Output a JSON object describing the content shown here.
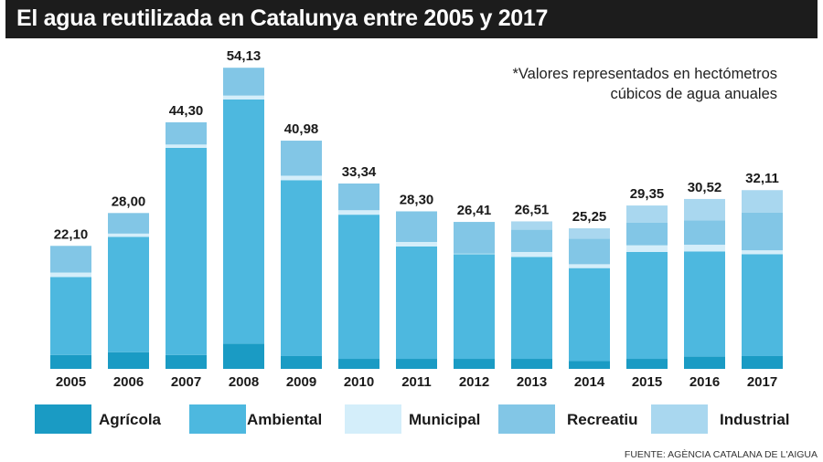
{
  "title": "El agua reutilizada en Catalunya entre 2005 y 2017",
  "note_line1": "*Valores representados en hectómetros",
  "note_line2": "cúbicos de agua anuales",
  "source": "FUENTE: AGÈNCIA CATALANA DE L'AIGUA",
  "chart_data": {
    "type": "bar",
    "stacked": true,
    "categories": [
      "2005",
      "2006",
      "2007",
      "2008",
      "2009",
      "2010",
      "2011",
      "2012",
      "2013",
      "2014",
      "2015",
      "2016",
      "2017"
    ],
    "totals": [
      "22,10",
      "28,00",
      "44,30",
      "54,13",
      "40,98",
      "33,34",
      "28,30",
      "26,41",
      "26,51",
      "25,25",
      "29,35",
      "30,52",
      "32,11"
    ],
    "series": [
      {
        "name": "Agrícola",
        "color": "#1a9bc4",
        "values": [
          2.5,
          3.0,
          2.5,
          4.5,
          2.3,
          1.8,
          1.8,
          1.8,
          1.8,
          1.4,
          1.8,
          2.2,
          2.3
        ]
      },
      {
        "name": "Ambiental",
        "color": "#4db8df",
        "values": [
          14.0,
          20.7,
          37.2,
          43.9,
          31.6,
          25.9,
          20.2,
          18.8,
          18.3,
          16.7,
          19.2,
          18.9,
          18.3
        ]
      },
      {
        "name": "Municipal",
        "color": "#d4eefa",
        "values": [
          0.8,
          0.6,
          0.6,
          0.7,
          0.8,
          0.8,
          0.8,
          0.1,
          0.9,
          0.7,
          1.2,
          1.2,
          0.7
        ]
      },
      {
        "name": "Recreatiu",
        "color": "#82c6e6",
        "values": [
          4.8,
          3.7,
          4.0,
          5.0,
          6.3,
          4.8,
          5.5,
          5.7,
          4.0,
          4.6,
          4.1,
          4.4,
          6.8
        ]
      },
      {
        "name": "Industrial",
        "color": "#a9d7ef",
        "values": [
          0.0,
          0.0,
          0.0,
          0.0,
          0.0,
          0.0,
          0.0,
          0.0,
          1.5,
          1.85,
          3.05,
          3.82,
          4.01
        ]
      }
    ],
    "ylim": [
      0,
      54.13
    ],
    "legend_position": "bottom"
  }
}
